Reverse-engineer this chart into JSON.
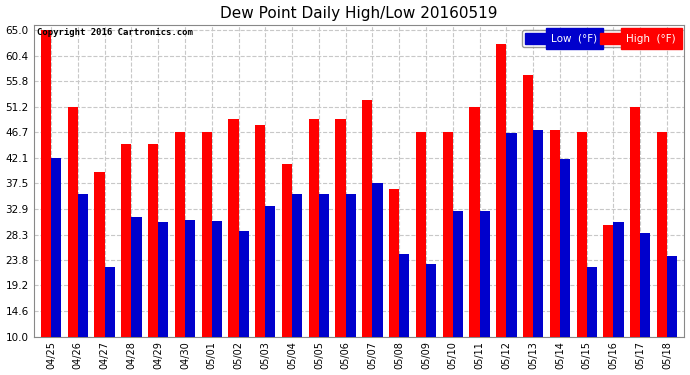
{
  "title": "Dew Point Daily High/Low 20160519",
  "copyright": "Copyright 2016 Cartronics.com",
  "categories": [
    "04/25",
    "04/26",
    "04/27",
    "04/28",
    "04/29",
    "04/30",
    "05/01",
    "05/02",
    "05/03",
    "05/04",
    "05/05",
    "05/06",
    "05/07",
    "05/08",
    "05/09",
    "05/10",
    "05/11",
    "05/12",
    "05/13",
    "05/14",
    "05/15",
    "05/16",
    "05/17",
    "05/18"
  ],
  "high_values": [
    65.0,
    51.2,
    39.5,
    44.5,
    44.5,
    46.7,
    46.7,
    49.0,
    48.0,
    41.0,
    49.0,
    49.0,
    52.5,
    36.5,
    46.7,
    46.7,
    51.2,
    62.5,
    57.0,
    47.0,
    46.7,
    30.0,
    51.2,
    46.7
  ],
  "low_values": [
    42.1,
    35.6,
    22.5,
    31.5,
    30.5,
    31.0,
    30.8,
    29.0,
    33.5,
    35.6,
    35.6,
    35.6,
    37.5,
    24.8,
    23.0,
    32.5,
    32.5,
    46.5,
    47.0,
    41.8,
    22.5,
    30.5,
    28.5,
    24.5
  ],
  "bar_color_high": "#ff0000",
  "bar_color_low": "#0000cc",
  "bg_color": "#ffffff",
  "plot_bg_color": "#ffffff",
  "grid_color": "#c8c8c8",
  "yticks": [
    10.0,
    14.6,
    19.2,
    23.8,
    28.3,
    32.9,
    37.5,
    42.1,
    46.7,
    51.2,
    55.8,
    60.4,
    65.0
  ],
  "ymin": 10.0,
  "ymax": 65.0,
  "legend_low_label": "Low  (°F)",
  "legend_high_label": "High  (°F)"
}
